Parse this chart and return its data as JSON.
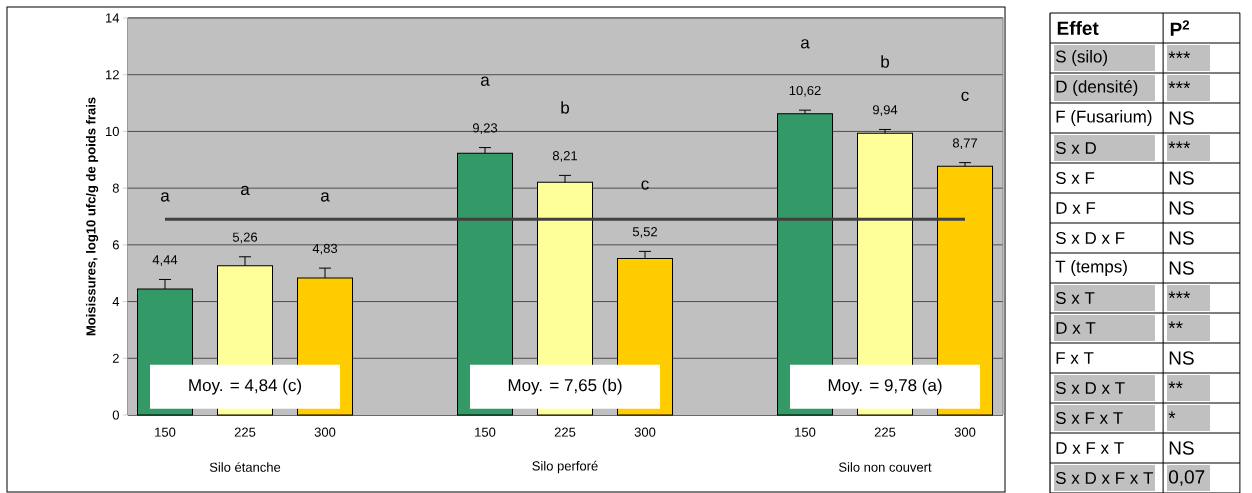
{
  "chart_data": [
    {
      "type": "bar",
      "ylabel": "Moisissures, log10 ufc/g de poids frais",
      "categories": [
        "150",
        "225",
        "300",
        null,
        "150",
        "225",
        "300",
        null,
        "150",
        "225",
        "300"
      ],
      "values": [
        4.44,
        5.26,
        4.83,
        null,
        9.23,
        8.21,
        5.52,
        null,
        10.62,
        9.94,
        8.77
      ],
      "colors": [
        "#339966",
        "#ffff99",
        "#ffcc00",
        null,
        "#339966",
        "#ffff99",
        "#ffcc00",
        null,
        "#339966",
        "#ffff99",
        "#ffcc00"
      ],
      "errors": [
        0.34,
        0.32,
        0.35,
        null,
        0.2,
        0.24,
        0.25,
        null,
        0.13,
        0.13,
        0.13
      ],
      "value_labels": [
        "4,44",
        "5,26",
        "4,83",
        null,
        "9,23",
        "8,21",
        "5,52",
        null,
        "10,62",
        "9,94",
        "8,77"
      ],
      "ylim": [
        0,
        14
      ],
      "yticks": [
        0,
        2,
        4,
        6,
        8,
        10,
        12,
        14
      ],
      "grid": "y",
      "ref_lines": [
        {
          "axis": "y",
          "value": 6.9,
          "color": "#404040"
        }
      ],
      "annotations": [
        "a",
        "a",
        "a",
        "a",
        "b",
        "c",
        "a",
        "b",
        "c",
        "Moy. = 4,84 (c)",
        "Moy. = 7,65 (b)",
        "Moy. = 9,78 (a)",
        "Silo étanche",
        "Silo perforé",
        "Silo non couvert"
      ]
    },
    {
      "type": "other",
      "xlabel": "Effet",
      "ylabel": "P$^{2}$",
      "categories": [
        "S (silo)",
        "D (densité)",
        "F (Fusarium)",
        "S x D",
        "S x F",
        "D x F",
        "S x D x F",
        "T (temps)",
        "S x T",
        "D x T",
        "F x T",
        "S x D x T",
        "S x F x T",
        "D x F x T",
        "S x D x F x T"
      ],
      "value_labels": [
        "***",
        "***",
        "NS",
        "***",
        "NS",
        "NS",
        "NS",
        "NS",
        "***",
        "**",
        "NS",
        "**",
        "*",
        "NS",
        "0,07"
      ],
      "colors": [
        "#c0c0c0",
        "#c0c0c0",
        "#ffffff",
        "#c0c0c0",
        "#ffffff",
        "#ffffff",
        "#ffffff",
        "#ffffff",
        "#c0c0c0",
        "#c0c0c0",
        "#ffffff",
        "#c0c0c0",
        "#c0c0c0",
        "#ffffff",
        "#c0c0c0"
      ]
    }
  ]
}
